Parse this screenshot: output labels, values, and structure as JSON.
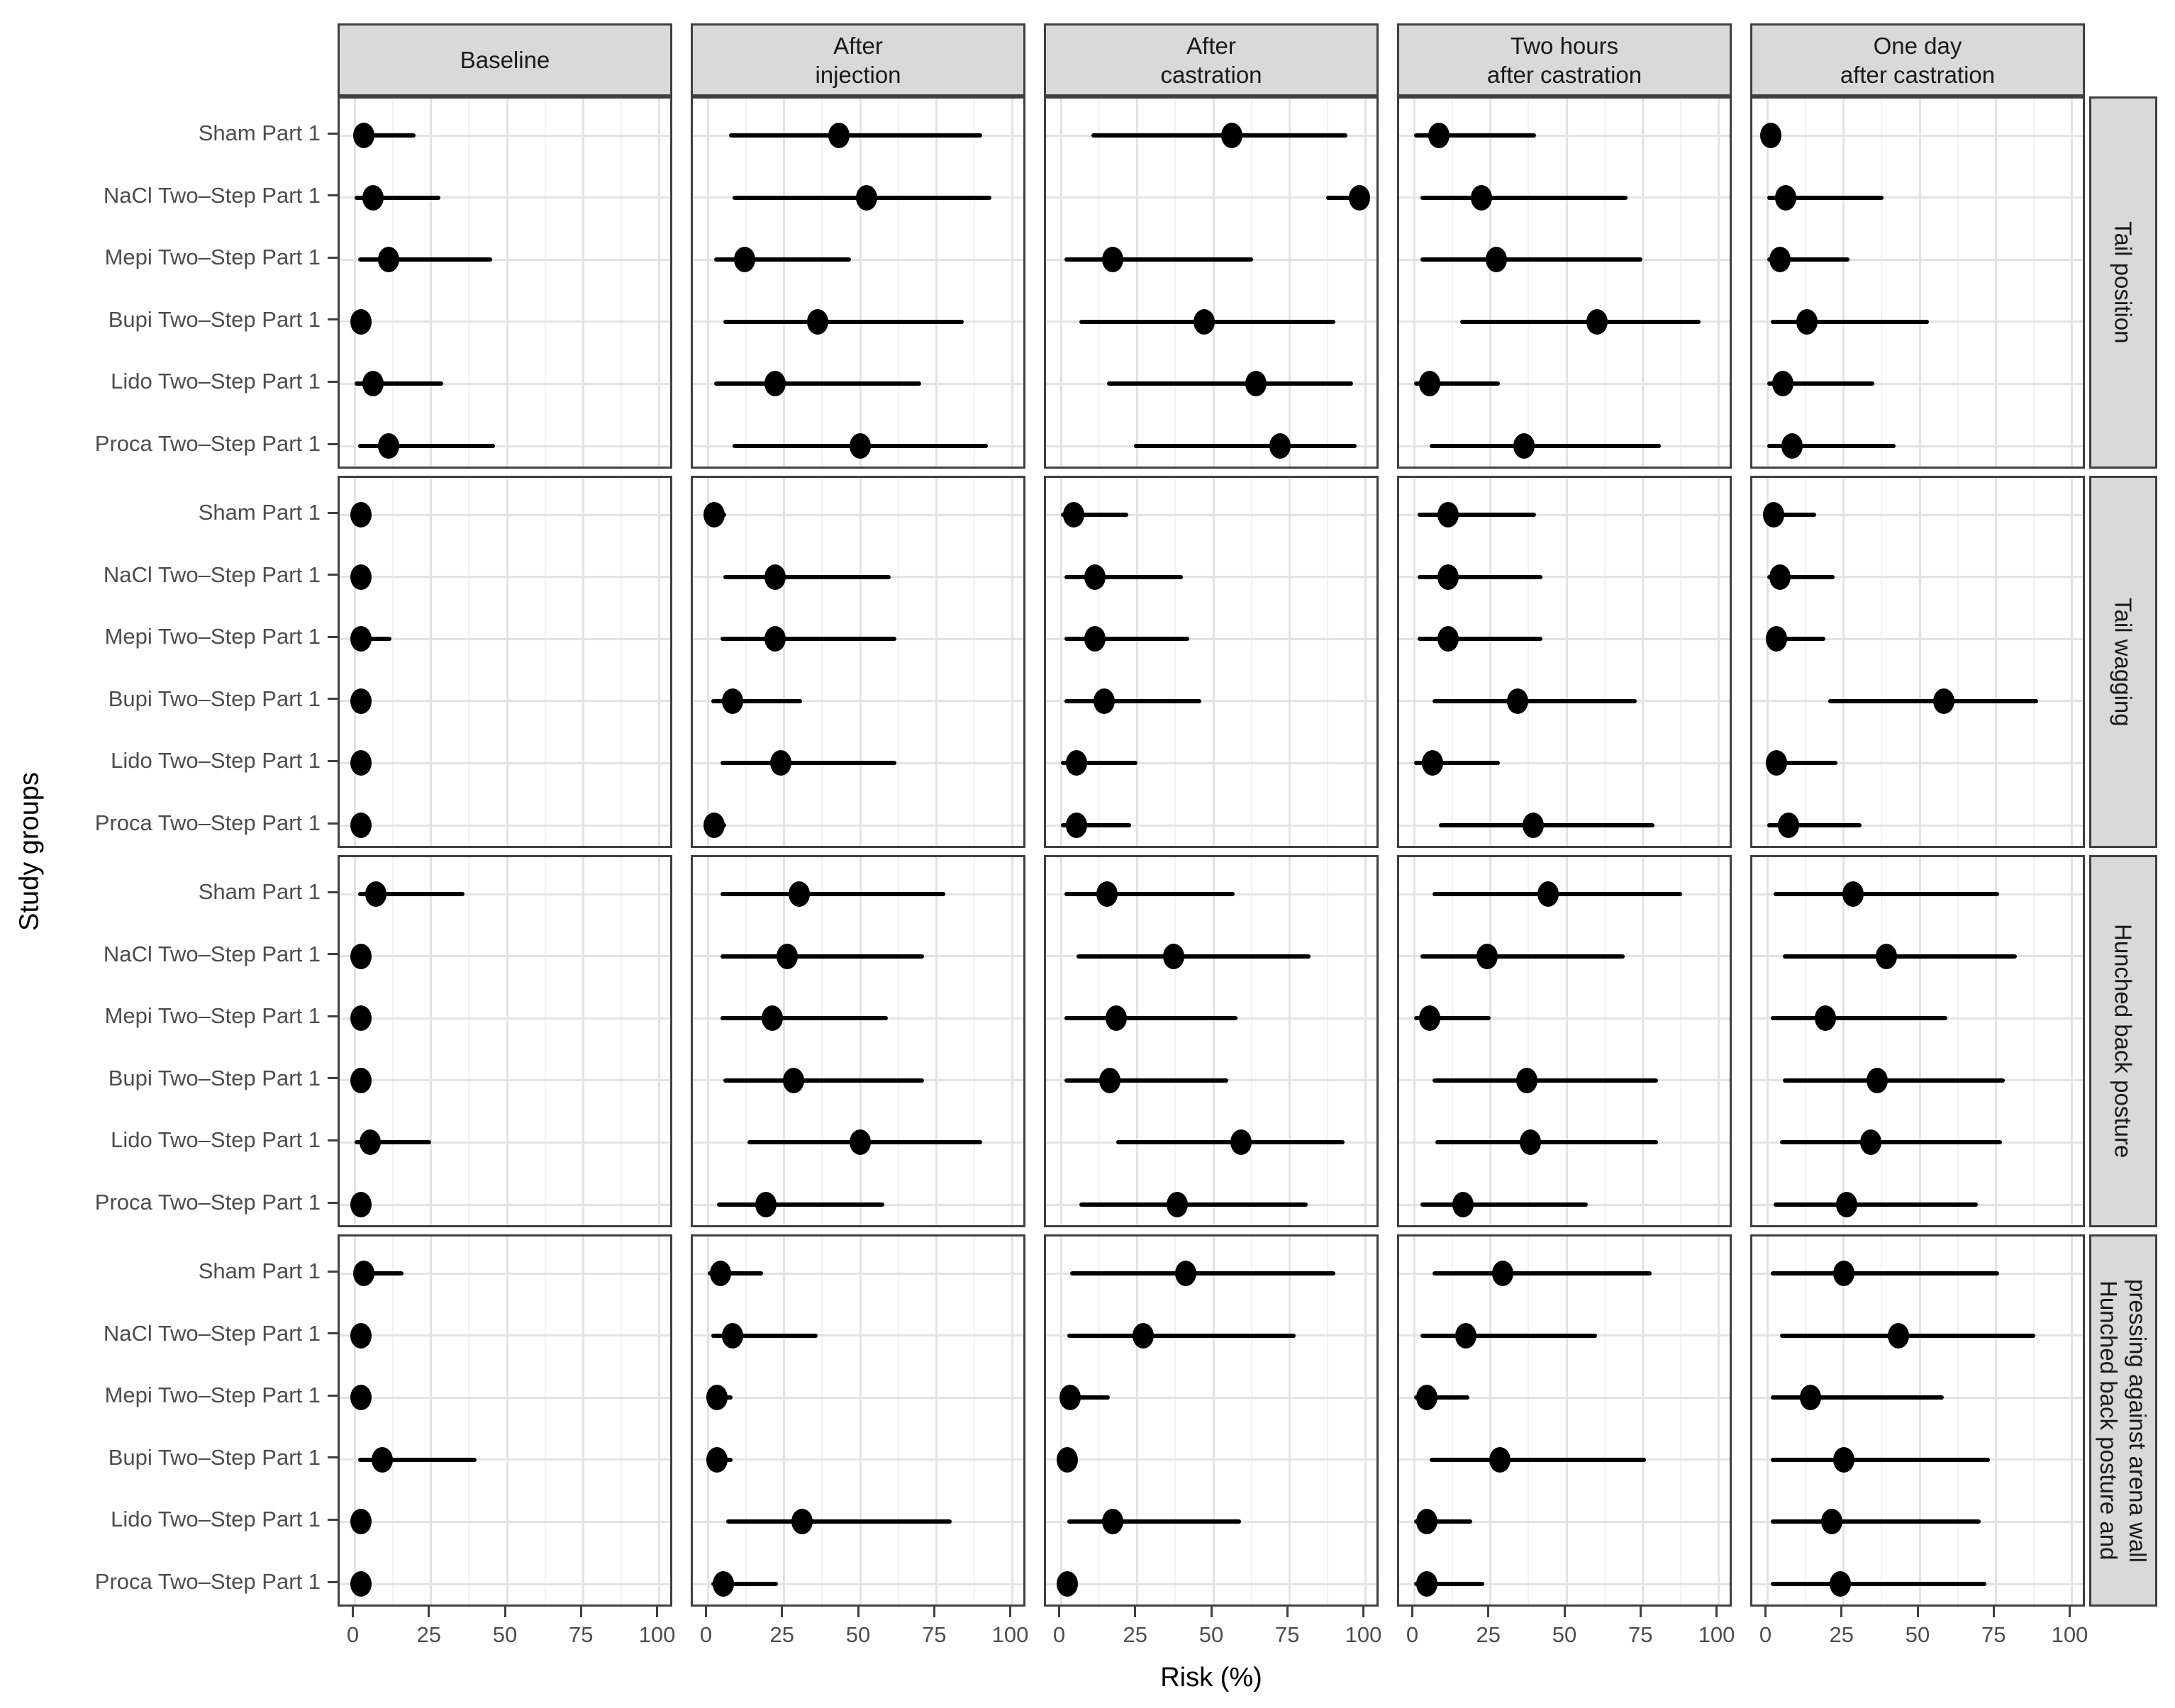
{
  "chart_data": {
    "type": "scatter",
    "subtype": "forest-dot-interval",
    "title": "",
    "xlabel": "Risk (%)",
    "ylabel": "Study groups",
    "xlim": [
      -5,
      105
    ],
    "x_ticks": [
      0,
      25,
      50,
      75,
      100
    ],
    "x_minor_gridlines": [
      12.5,
      37.5,
      62.5,
      87.5
    ],
    "grid": true,
    "legend": "none",
    "col_facets": [
      [
        "Baseline"
      ],
      [
        "After",
        "injection"
      ],
      [
        "After",
        "castration"
      ],
      [
        "Two hours",
        "after castration"
      ],
      [
        "One day",
        "after castration"
      ]
    ],
    "row_facets": [
      [
        "Tail position"
      ],
      [
        "Tail wagging"
      ],
      [
        "Hunched back posture"
      ],
      [
        "Hunched back posture and",
        "pressing against arena wall"
      ]
    ],
    "groups": [
      "Sham Part 1",
      "NaCl Two–Step Part 1",
      "Mepi Two–Step Part 1",
      "Bupi Two–Step Part 1",
      "Lido Two–Step Part 1",
      "Proca Two–Step Part 1"
    ],
    "values_note": "values[row_facet][col_facet][group] = [risk_estimate_pct, ci_low_pct, ci_high_pct]",
    "values": [
      [
        [
          [
            3,
            0,
            20
          ],
          [
            6,
            0,
            28
          ],
          [
            11,
            1,
            45
          ],
          [
            2,
            0,
            5
          ],
          [
            6,
            0,
            29
          ],
          [
            11,
            1,
            46
          ]
        ],
        [
          [
            43,
            7,
            90
          ],
          [
            52,
            8,
            93
          ],
          [
            12,
            2,
            47
          ],
          [
            36,
            5,
            84
          ],
          [
            22,
            2,
            70
          ],
          [
            50,
            8,
            92
          ]
        ],
        [
          [
            56,
            10,
            94
          ],
          [
            98,
            87,
            100
          ],
          [
            17,
            1,
            63
          ],
          [
            47,
            6,
            90
          ],
          [
            64,
            15,
            96
          ],
          [
            72,
            24,
            97
          ]
        ],
        [
          [
            8,
            0,
            40
          ],
          [
            22,
            2,
            70
          ],
          [
            27,
            2,
            75
          ],
          [
            60,
            15,
            94
          ],
          [
            5,
            0,
            28
          ],
          [
            36,
            5,
            81
          ]
        ],
        [
          [
            1,
            0,
            4
          ],
          [
            6,
            0,
            38
          ],
          [
            4,
            0,
            27
          ],
          [
            13,
            1,
            53
          ],
          [
            5,
            0,
            35
          ],
          [
            8,
            0,
            42
          ]
        ]
      ],
      [
        [
          [
            2,
            0,
            5
          ],
          [
            2,
            0,
            5
          ],
          [
            2,
            0,
            12
          ],
          [
            2,
            0,
            5
          ],
          [
            2,
            0,
            5
          ],
          [
            2,
            0,
            5
          ]
        ],
        [
          [
            2,
            0,
            6
          ],
          [
            22,
            5,
            60
          ],
          [
            22,
            4,
            62
          ],
          [
            8,
            1,
            31
          ],
          [
            24,
            4,
            62
          ],
          [
            2,
            0,
            6
          ]
        ],
        [
          [
            4,
            0,
            22
          ],
          [
            11,
            1,
            40
          ],
          [
            11,
            1,
            42
          ],
          [
            14,
            1,
            46
          ],
          [
            5,
            0,
            25
          ],
          [
            5,
            0,
            23
          ]
        ],
        [
          [
            11,
            1,
            40
          ],
          [
            11,
            1,
            42
          ],
          [
            11,
            1,
            42
          ],
          [
            34,
            6,
            73
          ],
          [
            6,
            0,
            28
          ],
          [
            39,
            8,
            79
          ]
        ],
        [
          [
            2,
            0,
            16
          ],
          [
            4,
            0,
            22
          ],
          [
            3,
            0,
            19
          ],
          [
            58,
            20,
            89
          ],
          [
            3,
            0,
            23
          ],
          [
            7,
            0,
            31
          ]
        ]
      ],
      [
        [
          [
            7,
            1,
            36
          ],
          [
            2,
            0,
            5
          ],
          [
            2,
            0,
            5
          ],
          [
            2,
            0,
            5
          ],
          [
            5,
            0,
            25
          ],
          [
            2,
            0,
            5
          ]
        ],
        [
          [
            30,
            4,
            78
          ],
          [
            26,
            4,
            71
          ],
          [
            21,
            4,
            59
          ],
          [
            28,
            5,
            71
          ],
          [
            50,
            13,
            90
          ],
          [
            19,
            3,
            58
          ]
        ],
        [
          [
            15,
            1,
            57
          ],
          [
            37,
            5,
            82
          ],
          [
            18,
            1,
            58
          ],
          [
            16,
            1,
            55
          ],
          [
            59,
            18,
            93
          ],
          [
            38,
            6,
            81
          ]
        ],
        [
          [
            44,
            6,
            88
          ],
          [
            24,
            2,
            69
          ],
          [
            5,
            0,
            25
          ],
          [
            37,
            6,
            80
          ],
          [
            38,
            7,
            80
          ],
          [
            16,
            2,
            57
          ]
        ],
        [
          [
            28,
            2,
            76
          ],
          [
            39,
            5,
            82
          ],
          [
            19,
            1,
            59
          ],
          [
            36,
            5,
            78
          ],
          [
            34,
            4,
            77
          ],
          [
            26,
            2,
            69
          ]
        ]
      ],
      [
        [
          [
            3,
            0,
            16
          ],
          [
            2,
            0,
            5
          ],
          [
            2,
            0,
            5
          ],
          [
            9,
            1,
            40
          ],
          [
            2,
            0,
            5
          ],
          [
            2,
            0,
            5
          ]
        ],
        [
          [
            4,
            0,
            18
          ],
          [
            8,
            1,
            36
          ],
          [
            3,
            0,
            8
          ],
          [
            3,
            0,
            8
          ],
          [
            31,
            6,
            80
          ],
          [
            5,
            1,
            23
          ]
        ],
        [
          [
            41,
            3,
            90
          ],
          [
            27,
            2,
            77
          ],
          [
            3,
            0,
            16
          ],
          [
            2,
            0,
            5
          ],
          [
            17,
            2,
            59
          ],
          [
            2,
            0,
            5
          ]
        ],
        [
          [
            29,
            6,
            78
          ],
          [
            17,
            2,
            60
          ],
          [
            4,
            0,
            18
          ],
          [
            28,
            5,
            76
          ],
          [
            4,
            0,
            19
          ],
          [
            4,
            0,
            23
          ]
        ],
        [
          [
            25,
            1,
            76
          ],
          [
            43,
            4,
            88
          ],
          [
            14,
            1,
            58
          ],
          [
            25,
            1,
            73
          ],
          [
            21,
            1,
            70
          ],
          [
            24,
            1,
            72
          ]
        ]
      ]
    ],
    "colors": {
      "point": "#000000",
      "ci_line": "#000000",
      "strip_bg": "#d9d9d9",
      "panel_border": "#404040",
      "grid_major": "#e3e3e3",
      "grid_minor": "#f2f2f2",
      "tick_text": "#4d4d4d",
      "text": "#1a1a1a"
    }
  }
}
